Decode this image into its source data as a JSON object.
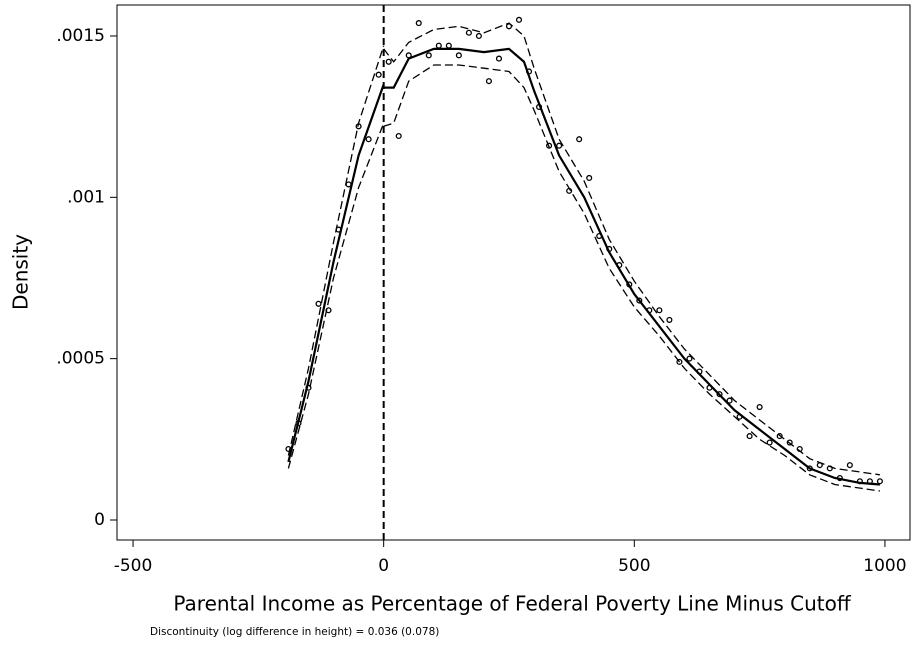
{
  "chart_data": {
    "type": "scatter",
    "xlabel": "Parental Income as Percentage of Federal Poverty Line Minus Cutoff",
    "ylabel": "Density",
    "annotation": "Discontinuity (log difference in height) = 0.036 (0.078)",
    "cutoff": 0,
    "xlim": [
      -532,
      1050
    ],
    "ylim": [
      -6.2e-05,
      0.001596
    ],
    "xticks": [
      -500,
      0,
      500,
      1000
    ],
    "yticks": [
      0,
      {
        "value": 0.0005,
        "label": ".0005"
      },
      {
        "value": 0.001,
        "label": ".001"
      },
      {
        "value": 0.0015,
        "label": ".0015"
      }
    ],
    "series": [
      {
        "mode": "markers",
        "color": "#000000",
        "x": [
          -190,
          -170,
          -150,
          -130,
          -110,
          -90,
          -70,
          -50,
          -30,
          -10,
          10,
          30,
          50,
          70,
          90,
          110,
          130,
          150,
          170,
          190,
          210,
          230,
          250,
          270,
          290,
          310,
          330,
          350,
          370,
          390,
          410,
          430,
          450,
          470,
          490,
          510,
          530,
          550,
          570,
          590,
          610,
          630,
          650,
          670,
          690,
          710,
          730,
          750,
          770,
          790,
          810,
          830,
          850,
          870,
          890,
          910,
          930,
          950,
          970,
          990
        ],
        "values": [
          0.00022,
          0.0003,
          0.00041,
          0.00067,
          0.00065,
          0.0009,
          0.00104,
          0.00122,
          0.00118,
          0.00138,
          0.00142,
          0.00119,
          0.00144,
          0.00154,
          0.00144,
          0.00147,
          0.00147,
          0.00144,
          0.00151,
          0.0015,
          0.00136,
          0.00143,
          0.00153,
          0.00155,
          0.00139,
          0.00128,
          0.00116,
          0.00116,
          0.00102,
          0.00118,
          0.00106,
          0.00088,
          0.00084,
          0.00079,
          0.00073,
          0.00068,
          0.00065,
          0.00065,
          0.00062,
          0.00049,
          0.0005,
          0.00046,
          0.00041,
          0.00039,
          0.00037,
          0.00032,
          0.00026,
          0.00035,
          0.00024,
          0.00026,
          0.00024,
          0.00022,
          0.00016,
          0.00017,
          0.00016,
          0.00013,
          0.00017,
          0.00012,
          0.00012,
          0.00012
        ]
      },
      {
        "mode": "lines",
        "color": "#000000",
        "dash": false,
        "x": [
          -190,
          -150,
          -100,
          -50,
          0
        ],
        "values": [
          0.00018,
          0.00043,
          0.0008,
          0.00113,
          0.00135
        ]
      },
      {
        "mode": "lines",
        "color": "#000000",
        "dash": true,
        "x": [
          -190,
          -150,
          -100,
          -50,
          0
        ],
        "values": [
          0.0002,
          0.00047,
          0.00086,
          0.00123,
          0.00147
        ]
      },
      {
        "mode": "lines",
        "color": "#000000",
        "dash": true,
        "x": [
          -190,
          -150,
          -100,
          -50,
          0
        ],
        "values": [
          0.00016,
          0.00039,
          0.00075,
          0.00103,
          0.00123
        ]
      },
      {
        "mode": "lines",
        "color": "#000000",
        "dash": false,
        "x": [
          0,
          20,
          50,
          100,
          150,
          200,
          250,
          280,
          300,
          350,
          400,
          450,
          500,
          550,
          600,
          650,
          700,
          750,
          800,
          850,
          900,
          950,
          990
        ],
        "values": [
          0.00134,
          0.00134,
          0.00143,
          0.00146,
          0.00146,
          0.00145,
          0.00146,
          0.00142,
          0.00133,
          0.00113,
          0.001,
          0.00083,
          0.0007,
          0.0006,
          0.0005,
          0.00042,
          0.00034,
          0.00028,
          0.00022,
          0.00016,
          0.00013,
          0.000115,
          0.00011
        ]
      },
      {
        "mode": "lines",
        "color": "#000000",
        "dash": true,
        "x": [
          0,
          20,
          50,
          100,
          150,
          200,
          250,
          280,
          300,
          350,
          400,
          450,
          500,
          550,
          600,
          650,
          700,
          750,
          800,
          850,
          900,
          990
        ],
        "values": [
          0.00146,
          0.00142,
          0.00148,
          0.00152,
          0.00153,
          0.00151,
          0.00154,
          0.0015,
          0.0014,
          0.00118,
          0.00105,
          0.00087,
          0.00074,
          0.00063,
          0.00053,
          0.00045,
          0.00037,
          0.00031,
          0.00025,
          0.00019,
          0.00016,
          0.00014
        ]
      },
      {
        "mode": "lines",
        "color": "#000000",
        "dash": true,
        "x": [
          0,
          20,
          50,
          100,
          150,
          200,
          250,
          280,
          300,
          350,
          400,
          450,
          500,
          550,
          600,
          650,
          700,
          750,
          800,
          850,
          900,
          990
        ],
        "values": [
          0.00122,
          0.00123,
          0.00136,
          0.00141,
          0.00141,
          0.0014,
          0.00139,
          0.00134,
          0.00127,
          0.00108,
          0.00095,
          0.00078,
          0.00066,
          0.00057,
          0.00047,
          0.00039,
          0.00032,
          0.00025,
          0.0002,
          0.00014,
          0.00011,
          9e-05
        ]
      }
    ]
  }
}
